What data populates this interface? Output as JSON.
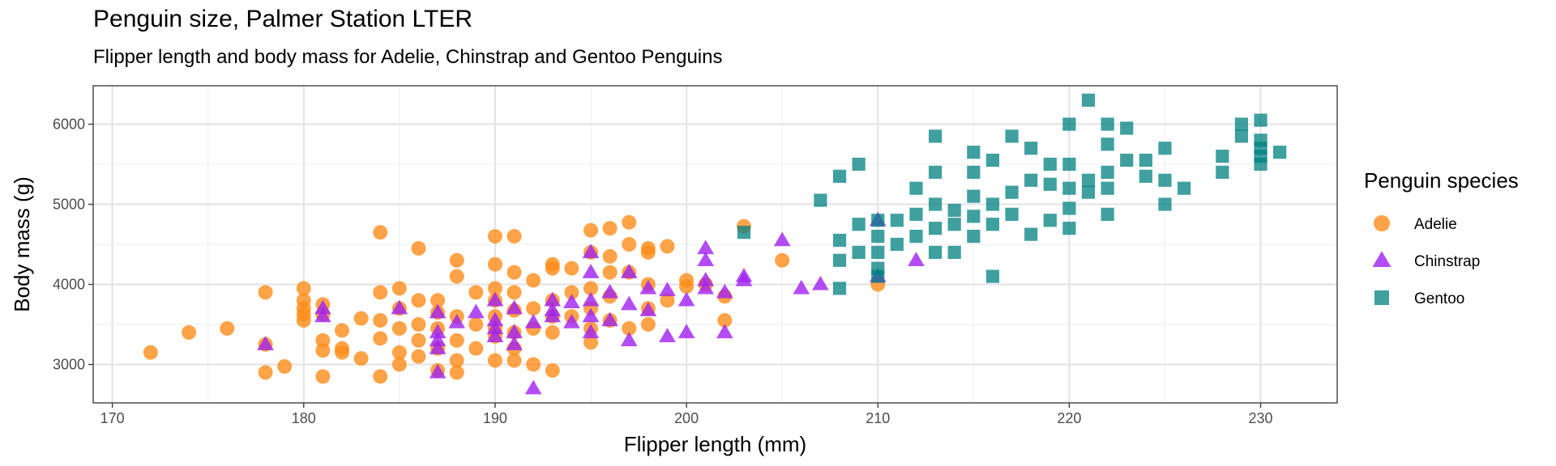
{
  "chart_data": {
    "type": "scatter",
    "title": "Penguin size, Palmer Station LTER",
    "subtitle": "Flipper length and body mass for Adelie, Chinstrap and Gentoo Penguins",
    "xlabel": "Flipper length (mm)",
    "ylabel": "Body mass (g)",
    "xlim": [
      169,
      234
    ],
    "ylim": [
      2520,
      6480
    ],
    "xticks": [
      170,
      180,
      190,
      200,
      210,
      220,
      230
    ],
    "yticks": [
      3000,
      4000,
      5000,
      6000
    ],
    "grid": true,
    "legend": {
      "title": "Penguin species",
      "position": "right"
    },
    "series": [
      {
        "name": "Adelie",
        "marker": "circle",
        "color": "#FF8C1A",
        "points": [
          [
            172,
            3150
          ],
          [
            174,
            3400
          ],
          [
            176,
            3450
          ],
          [
            178,
            3900
          ],
          [
            178,
            3250
          ],
          [
            178,
            2900
          ],
          [
            179,
            2975
          ],
          [
            180,
            3950
          ],
          [
            180,
            3800
          ],
          [
            180,
            3700
          ],
          [
            180,
            3625
          ],
          [
            180,
            3550
          ],
          [
            181,
            3750
          ],
          [
            181,
            3625
          ],
          [
            181,
            3300
          ],
          [
            181,
            3175
          ],
          [
            181,
            2850
          ],
          [
            182,
            3425
          ],
          [
            182,
            3200
          ],
          [
            182,
            3150
          ],
          [
            183,
            3575
          ],
          [
            183,
            3075
          ],
          [
            184,
            4650
          ],
          [
            184,
            3900
          ],
          [
            184,
            3550
          ],
          [
            184,
            3325
          ],
          [
            184,
            2850
          ],
          [
            185,
            3950
          ],
          [
            185,
            3700
          ],
          [
            185,
            3450
          ],
          [
            185,
            3150
          ],
          [
            185,
            3000
          ],
          [
            186,
            4450
          ],
          [
            186,
            3800
          ],
          [
            186,
            3500
          ],
          [
            186,
            3300
          ],
          [
            186,
            3100
          ],
          [
            187,
            3800
          ],
          [
            187,
            3650
          ],
          [
            187,
            3450
          ],
          [
            187,
            3200
          ],
          [
            187,
            2925
          ],
          [
            188,
            4300
          ],
          [
            188,
            4100
          ],
          [
            188,
            3600
          ],
          [
            188,
            3300
          ],
          [
            188,
            3050
          ],
          [
            188,
            2900
          ],
          [
            189,
            3900
          ],
          [
            189,
            3500
          ],
          [
            189,
            3200
          ],
          [
            190,
            4600
          ],
          [
            190,
            4250
          ],
          [
            190,
            3950
          ],
          [
            190,
            3800
          ],
          [
            190,
            3600
          ],
          [
            190,
            3450
          ],
          [
            190,
            3350
          ],
          [
            190,
            3050
          ],
          [
            191,
            4600
          ],
          [
            191,
            4150
          ],
          [
            191,
            3900
          ],
          [
            191,
            3675
          ],
          [
            191,
            3400
          ],
          [
            191,
            3200
          ],
          [
            191,
            3050
          ],
          [
            192,
            4050
          ],
          [
            192,
            3700
          ],
          [
            192,
            3450
          ],
          [
            192,
            3000
          ],
          [
            193,
            4250
          ],
          [
            193,
            4200
          ],
          [
            193,
            3800
          ],
          [
            193,
            3600
          ],
          [
            193,
            3400
          ],
          [
            193,
            2925
          ],
          [
            194,
            4200
          ],
          [
            194,
            3900
          ],
          [
            194,
            3600
          ],
          [
            195,
            4675
          ],
          [
            195,
            4400
          ],
          [
            195,
            3950
          ],
          [
            195,
            3700
          ],
          [
            195,
            3450
          ],
          [
            195,
            3275
          ],
          [
            196,
            4700
          ],
          [
            196,
            4350
          ],
          [
            196,
            4150
          ],
          [
            196,
            3850
          ],
          [
            196,
            3550
          ],
          [
            197,
            4775
          ],
          [
            197,
            4500
          ],
          [
            197,
            4150
          ],
          [
            197,
            3450
          ],
          [
            198,
            4450
          ],
          [
            198,
            4400
          ],
          [
            198,
            4000
          ],
          [
            198,
            3700
          ],
          [
            198,
            3500
          ],
          [
            199,
            4475
          ],
          [
            199,
            3800
          ],
          [
            200,
            4050
          ],
          [
            200,
            3975
          ],
          [
            201,
            4000
          ],
          [
            202,
            3850
          ],
          [
            202,
            3550
          ],
          [
            203,
            4725
          ],
          [
            205,
            4300
          ],
          [
            210,
            4000
          ]
        ]
      },
      {
        "name": "Chinstrap",
        "marker": "triangle",
        "color": "#A020F0",
        "points": [
          [
            178,
            3250
          ],
          [
            181,
            3700
          ],
          [
            181,
            3600
          ],
          [
            185,
            3700
          ],
          [
            187,
            3650
          ],
          [
            187,
            3400
          ],
          [
            187,
            3300
          ],
          [
            187,
            3200
          ],
          [
            187,
            2900
          ],
          [
            188,
            3525
          ],
          [
            189,
            3650
          ],
          [
            190,
            3800
          ],
          [
            190,
            3550
          ],
          [
            190,
            3450
          ],
          [
            190,
            3350
          ],
          [
            191,
            3700
          ],
          [
            191,
            3400
          ],
          [
            191,
            3250
          ],
          [
            192,
            3525
          ],
          [
            192,
            2700
          ],
          [
            193,
            3800
          ],
          [
            193,
            3675
          ],
          [
            193,
            3600
          ],
          [
            194,
            3775
          ],
          [
            194,
            3525
          ],
          [
            195,
            4400
          ],
          [
            195,
            4150
          ],
          [
            195,
            3800
          ],
          [
            195,
            3600
          ],
          [
            195,
            3400
          ],
          [
            196,
            3900
          ],
          [
            196,
            3550
          ],
          [
            197,
            4150
          ],
          [
            197,
            3750
          ],
          [
            197,
            3300
          ],
          [
            198,
            3950
          ],
          [
            198,
            3675
          ],
          [
            199,
            3925
          ],
          [
            199,
            3350
          ],
          [
            200,
            3800
          ],
          [
            200,
            3400
          ],
          [
            201,
            4450
          ],
          [
            201,
            4300
          ],
          [
            201,
            4050
          ],
          [
            201,
            3950
          ],
          [
            202,
            3900
          ],
          [
            202,
            3400
          ],
          [
            203,
            4100
          ],
          [
            203,
            4050
          ],
          [
            205,
            4550
          ],
          [
            206,
            3950
          ],
          [
            207,
            4000
          ],
          [
            210,
            4800
          ],
          [
            210,
            4100
          ],
          [
            212,
            4300
          ]
        ]
      },
      {
        "name": "Gentoo",
        "marker": "square",
        "color": "#008080",
        "points": [
          [
            203,
            4650
          ],
          [
            207,
            5050
          ],
          [
            208,
            5350
          ],
          [
            208,
            4550
          ],
          [
            208,
            4300
          ],
          [
            208,
            3950
          ],
          [
            209,
            5500
          ],
          [
            209,
            4750
          ],
          [
            209,
            4400
          ],
          [
            210,
            4800
          ],
          [
            210,
            4600
          ],
          [
            210,
            4400
          ],
          [
            210,
            4200
          ],
          [
            210,
            4100
          ],
          [
            211,
            4800
          ],
          [
            211,
            4500
          ],
          [
            212,
            5200
          ],
          [
            212,
            4875
          ],
          [
            212,
            4600
          ],
          [
            213,
            5850
          ],
          [
            213,
            5400
          ],
          [
            213,
            5000
          ],
          [
            213,
            4700
          ],
          [
            213,
            4400
          ],
          [
            214,
            4925
          ],
          [
            214,
            4750
          ],
          [
            214,
            4400
          ],
          [
            215,
            5650
          ],
          [
            215,
            5400
          ],
          [
            215,
            5100
          ],
          [
            215,
            4850
          ],
          [
            215,
            4600
          ],
          [
            216,
            5550
          ],
          [
            216,
            5000
          ],
          [
            216,
            4750
          ],
          [
            216,
            4100
          ],
          [
            217,
            5850
          ],
          [
            217,
            5150
          ],
          [
            217,
            4875
          ],
          [
            218,
            5700
          ],
          [
            218,
            5300
          ],
          [
            218,
            4625
          ],
          [
            219,
            5500
          ],
          [
            219,
            5250
          ],
          [
            219,
            4800
          ],
          [
            220,
            6000
          ],
          [
            220,
            5500
          ],
          [
            220,
            5200
          ],
          [
            220,
            4950
          ],
          [
            220,
            4700
          ],
          [
            221,
            6300
          ],
          [
            221,
            5300
          ],
          [
            221,
            5150
          ],
          [
            222,
            6000
          ],
          [
            222,
            5750
          ],
          [
            222,
            5400
          ],
          [
            222,
            5200
          ],
          [
            222,
            4875
          ],
          [
            223,
            5950
          ],
          [
            223,
            5550
          ],
          [
            224,
            5550
          ],
          [
            224,
            5350
          ],
          [
            225,
            5700
          ],
          [
            225,
            5300
          ],
          [
            225,
            5000
          ],
          [
            226,
            5200
          ],
          [
            228,
            5600
          ],
          [
            228,
            5400
          ],
          [
            229,
            6000
          ],
          [
            229,
            5850
          ],
          [
            230,
            6050
          ],
          [
            230,
            5800
          ],
          [
            230,
            5700
          ],
          [
            230,
            5600
          ],
          [
            230,
            5500
          ],
          [
            231,
            5650
          ]
        ]
      }
    ]
  }
}
